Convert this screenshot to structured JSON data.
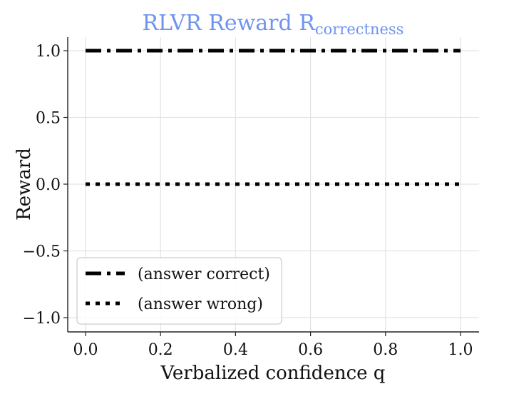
{
  "chart_data": {
    "type": "line",
    "title": {
      "main": "RLVR Reward R",
      "subscript": "correctness",
      "color": "#6f94ef"
    },
    "xlabel": "Verbalized confidence q",
    "ylabel": "Reward",
    "xlim": [
      0.0,
      1.0
    ],
    "ylim": [
      -1.1,
      1.1
    ],
    "xticks": [
      0.0,
      0.2,
      0.4,
      0.6,
      0.8,
      1.0
    ],
    "xtick_labels": [
      "0.0",
      "0.2",
      "0.4",
      "0.6",
      "0.8",
      "1.0"
    ],
    "yticks": [
      1.0,
      0.5,
      0.0,
      -0.5,
      -1.0
    ],
    "ytick_labels": [
      "1.0",
      "0.5",
      "0.0",
      "−0.5",
      "−1.0"
    ],
    "grid": true,
    "legend_position": "lower-left",
    "series": [
      {
        "name": "(answer correct)",
        "style": "dash-dot",
        "color": "#000000",
        "x": [
          0.0,
          1.0
        ],
        "y": [
          1.0,
          1.0
        ]
      },
      {
        "name": "(answer wrong)",
        "style": "dotted",
        "color": "#000000",
        "x": [
          0.0,
          1.0
        ],
        "y": [
          0.0,
          0.0
        ]
      }
    ]
  }
}
